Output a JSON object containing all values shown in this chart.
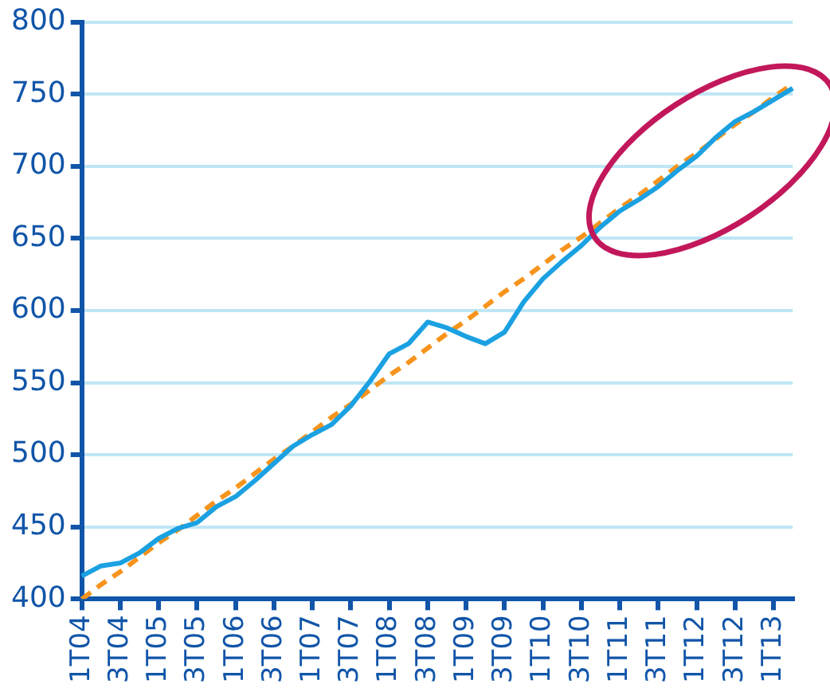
{
  "chart_data": {
    "type": "line",
    "categories": [
      "1T04",
      null,
      "3T04",
      null,
      "1T05",
      null,
      "3T05",
      null,
      "1T06",
      null,
      "3T06",
      null,
      "1T07",
      null,
      "3T07",
      null,
      "1T08",
      null,
      "3T08",
      null,
      "1T09",
      null,
      "3T09",
      null,
      "1T10",
      null,
      "3T10",
      null,
      "1T11",
      null,
      "3T11",
      null,
      "1T12",
      null,
      "3T12",
      null,
      "1T13",
      null
    ],
    "series": [
      {
        "color": "#1ba1e2",
        "line_style": "solid",
        "values": [
          416,
          423,
          425,
          432,
          442,
          449,
          453,
          464,
          471,
          482,
          494,
          506,
          514,
          521,
          534,
          551,
          570,
          577,
          592,
          588,
          582,
          577,
          585,
          606,
          622,
          634,
          645,
          658,
          669,
          677,
          686,
          697,
          707,
          720,
          731,
          738,
          746,
          754
        ]
      },
      {
        "color": "#f7941d",
        "line_style": "dashed",
        "values": [
          400,
          410,
          419,
          429,
          439,
          448,
          458,
          468,
          477,
          487,
          497,
          506,
          516,
          526,
          535,
          545,
          555,
          564,
          574,
          584,
          593,
          603,
          613,
          622,
          632,
          642,
          651,
          661,
          671,
          680,
          690,
          700,
          709,
          719,
          729,
          738,
          748,
          757
        ]
      }
    ],
    "ylim": [
      400,
      800
    ],
    "yticks": [
      400,
      450,
      500,
      550,
      600,
      650,
      700,
      750,
      800
    ],
    "grid": "y",
    "legend": false,
    "marker": "none"
  }
}
